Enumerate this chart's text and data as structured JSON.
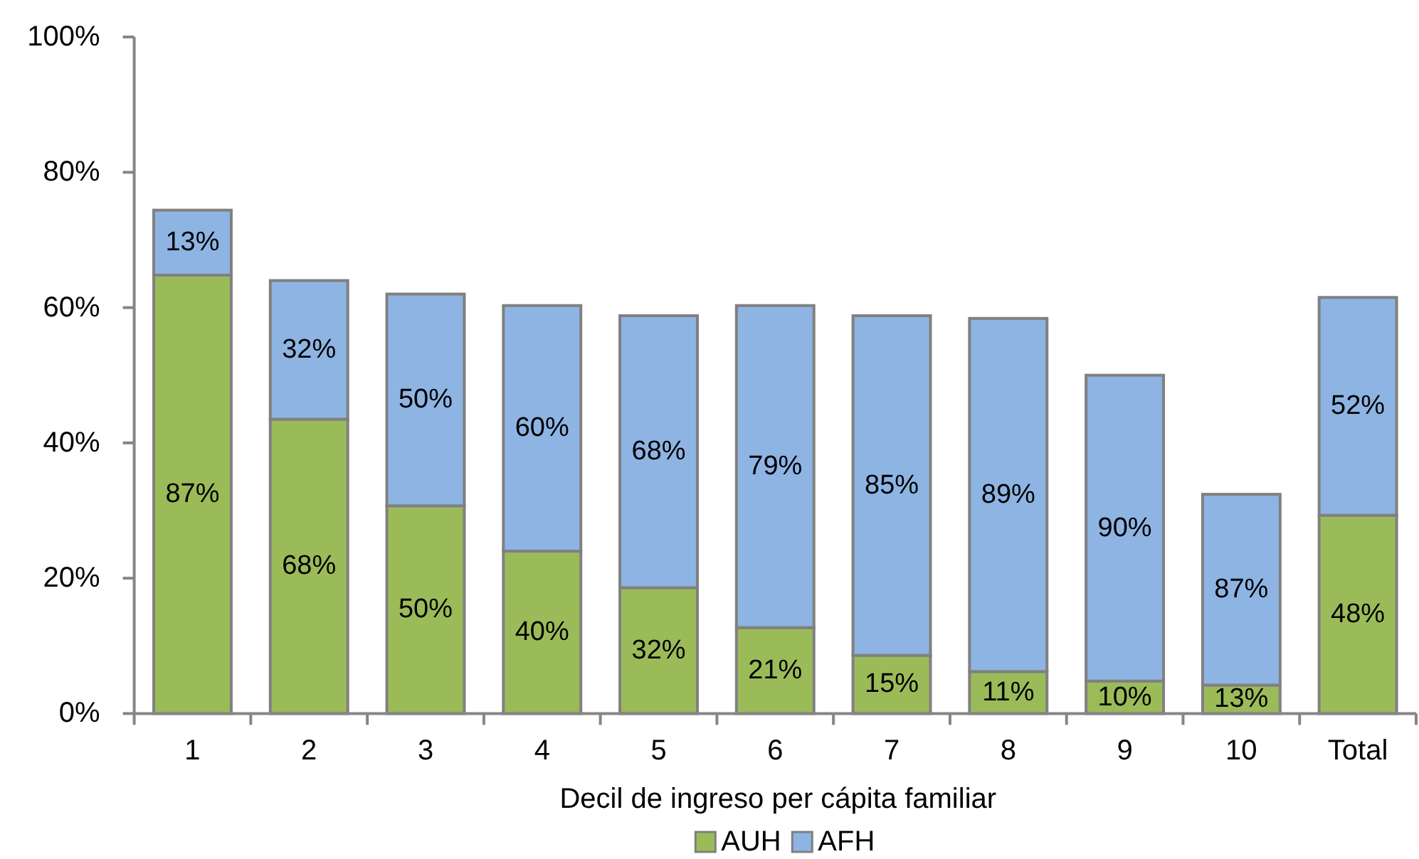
{
  "chart_data": {
    "type": "bar",
    "stacked": true,
    "categories": [
      "1",
      "2",
      "3",
      "4",
      "5",
      "6",
      "7",
      "8",
      "9",
      "10",
      "Total"
    ],
    "series": [
      {
        "name": "AUH",
        "color": "#9bbb59",
        "values": [
          64.8,
          43.5,
          30.7,
          24.0,
          18.6,
          12.7,
          8.6,
          6.2,
          4.8,
          4.2,
          29.3
        ]
      },
      {
        "name": "AFH",
        "color": "#8eb4e3",
        "values": [
          9.6,
          20.5,
          31.3,
          36.3,
          40.2,
          47.6,
          50.2,
          52.2,
          45.2,
          28.2,
          32.2
        ]
      }
    ],
    "xlabel": "Decil de ingreso per cápita familiar",
    "ylim": [
      0,
      100
    ],
    "yticks": [
      {
        "value": 0,
        "label": "0%"
      },
      {
        "value": 20,
        "label": "20%"
      },
      {
        "value": 40,
        "label": "40%"
      },
      {
        "value": 60,
        "label": "60%"
      },
      {
        "value": 80,
        "label": "80%"
      },
      {
        "value": 100,
        "label": "100%"
      }
    ],
    "annotations": [
      "87%",
      "13%",
      "68%",
      "32%",
      "50%",
      "50%",
      "40%",
      "60%",
      "32%",
      "68%",
      "21%",
      "79%",
      "15%",
      "85%",
      "11%",
      "89%",
      "10%",
      "90%",
      "13%",
      "87%",
      "48%",
      "52%"
    ],
    "legend": "bottom"
  }
}
